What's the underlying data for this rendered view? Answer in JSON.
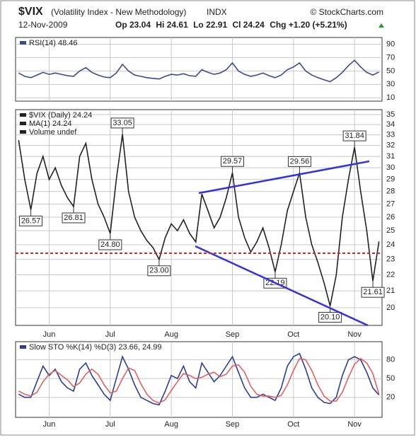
{
  "header": {
    "symbol": "$VIX",
    "name": "(Volatility Index - New Methodology)",
    "exchange": "INDX",
    "copyright": "© StockCharts.com",
    "date": "12-Nov-2009",
    "quote": [
      "Op 23.04",
      "Hi 24.61",
      "Lo 22.91",
      "Cl 24.24"
    ],
    "change": "Chg +1.20 (+5.21%)"
  },
  "chart_data": [
    {
      "type": "line",
      "legend": [
        "RSI(14) 48.46"
      ],
      "categories": [
        null,
        null,
        null,
        null,
        null,
        "Jun",
        null,
        null,
        null,
        null,
        null,
        null,
        null,
        null,
        null,
        "Jul",
        null,
        null,
        null,
        null,
        null,
        null,
        null,
        null,
        null,
        "Aug",
        null,
        null,
        null,
        null,
        null,
        null,
        null,
        null,
        null,
        "Sep",
        null,
        null,
        null,
        null,
        null,
        null,
        null,
        null,
        null,
        "Oct",
        null,
        null,
        null,
        null,
        null,
        null,
        null,
        null,
        null,
        "Nov",
        null,
        null,
        null,
        null
      ],
      "series": [
        {
          "name": "RSI(14)",
          "color": "#3a4a8c",
          "values": [
            47,
            42,
            40,
            44,
            48,
            45,
            47,
            45,
            43,
            42,
            50,
            55,
            48,
            44,
            41,
            40,
            47,
            60,
            50,
            44,
            42,
            40,
            39,
            38,
            42,
            45,
            44,
            46,
            43,
            42,
            52,
            48,
            45,
            47,
            52,
            62,
            50,
            45,
            42,
            44,
            47,
            43,
            40,
            44,
            52,
            56,
            62,
            50,
            44,
            40,
            37,
            34,
            40,
            48,
            58,
            66,
            56,
            48,
            44,
            48.46
          ]
        }
      ],
      "ylim": [
        5,
        100
      ],
      "yticks": [
        10,
        30,
        50,
        70,
        90
      ],
      "grid": true
    },
    {
      "type": "line",
      "log_scale": true,
      "legend": [
        "$VIX (Daily) 24.24",
        "MA(1) 24.24",
        "Volume undef"
      ],
      "categories": [
        null,
        null,
        null,
        null,
        null,
        "Jun",
        null,
        null,
        null,
        null,
        null,
        null,
        null,
        null,
        null,
        "Jul",
        null,
        null,
        null,
        null,
        null,
        null,
        null,
        null,
        null,
        "Aug",
        null,
        null,
        null,
        null,
        null,
        null,
        null,
        null,
        null,
        "Sep",
        null,
        null,
        null,
        null,
        null,
        null,
        null,
        null,
        null,
        "Oct",
        null,
        null,
        null,
        null,
        null,
        null,
        null,
        null,
        null,
        "Nov",
        null,
        null,
        null,
        null
      ],
      "series": [
        {
          "name": "$VIX (Daily)",
          "color": "#222222",
          "values": [
            32.5,
            29,
            26.57,
            29.5,
            31,
            29,
            30,
            28.5,
            27.5,
            26.81,
            31,
            32.2,
            29,
            27,
            26,
            24.8,
            29,
            33.05,
            28,
            26,
            25,
            24.3,
            23.8,
            23,
            24.5,
            25.5,
            25,
            25.8,
            24.8,
            24.2,
            27.8,
            26.5,
            25.2,
            26,
            27.5,
            29.57,
            26,
            24.5,
            23.5,
            24.2,
            25.2,
            23.8,
            22.19,
            24,
            26.5,
            28,
            29.56,
            26,
            24,
            22.8,
            21.5,
            20.1,
            22,
            26,
            29,
            31.84,
            28,
            25,
            21.61,
            24.24
          ],
          "value_labels": [
            null,
            null,
            "26.57",
            null,
            null,
            null,
            null,
            null,
            null,
            "26.81",
            null,
            null,
            null,
            null,
            null,
            "24.80",
            null,
            "33.05",
            null,
            null,
            null,
            null,
            null,
            "23.00",
            null,
            null,
            null,
            null,
            null,
            null,
            null,
            null,
            null,
            null,
            null,
            "29.57",
            null,
            null,
            null,
            null,
            null,
            null,
            "22.19",
            null,
            null,
            null,
            "29.56",
            null,
            null,
            null,
            null,
            "20.10",
            null,
            null,
            null,
            "31.84",
            null,
            null,
            "21.61",
            null
          ]
        }
      ],
      "ylim": [
        19,
        35.5
      ],
      "yticks": [
        20,
        21,
        22,
        23,
        24,
        25,
        26,
        27,
        28,
        29,
        30,
        31,
        32,
        33,
        34,
        35
      ],
      "grid": true
    },
    {
      "type": "line",
      "legend": [
        "Slow STO %K(14) %D(3) 23.66, 24.99"
      ],
      "categories": [
        null,
        null,
        null,
        null,
        null,
        "Jun",
        null,
        null,
        null,
        null,
        null,
        null,
        null,
        null,
        null,
        "Jul",
        null,
        null,
        null,
        null,
        null,
        null,
        null,
        null,
        null,
        "Aug",
        null,
        null,
        null,
        null,
        null,
        null,
        null,
        null,
        null,
        "Sep",
        null,
        null,
        null,
        null,
        null,
        null,
        null,
        null,
        null,
        "Oct",
        null,
        null,
        null,
        null,
        null,
        null,
        null,
        null,
        null,
        "Nov",
        null,
        null,
        null,
        null
      ],
      "series": [
        {
          "name": "%K(14)",
          "color": "#2c3f8f",
          "values": [
            25,
            20,
            20,
            45,
            70,
            55,
            65,
            45,
            35,
            30,
            65,
            75,
            55,
            40,
            25,
            15,
            50,
            85,
            65,
            40,
            20,
            15,
            10,
            8,
            30,
            55,
            50,
            70,
            45,
            35,
            75,
            60,
            45,
            55,
            70,
            85,
            60,
            35,
            20,
            20,
            25,
            20,
            15,
            35,
            70,
            85,
            90,
            65,
            35,
            20,
            12,
            10,
            20,
            55,
            80,
            85,
            80,
            60,
            35,
            23.66
          ]
        },
        {
          "name": "%D(3)",
          "color": "#e06060",
          "values": [
            30,
            25,
            22,
            28,
            45,
            57,
            63,
            55,
            48,
            37,
            43,
            57,
            65,
            57,
            40,
            27,
            30,
            50,
            67,
            63,
            42,
            25,
            15,
            11,
            16,
            31,
            45,
            58,
            55,
            50,
            52,
            57,
            60,
            53,
            57,
            70,
            72,
            60,
            38,
            25,
            22,
            22,
            20,
            23,
            40,
            63,
            82,
            80,
            63,
            40,
            22,
            14,
            14,
            28,
            52,
            73,
            82,
            75,
            58,
            24.99
          ]
        }
      ],
      "ylim": [
        -12,
        109
      ],
      "yticks": [
        20,
        50,
        80
      ],
      "grid": true
    }
  ]
}
